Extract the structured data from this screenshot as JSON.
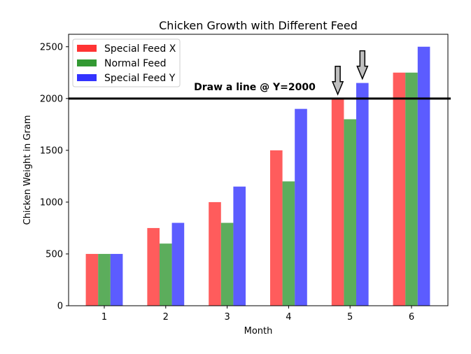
{
  "chart_data": {
    "type": "bar",
    "title": "Chicken Growth with Different Feed",
    "xlabel": "Month",
    "ylabel": "Chicken Weight in Gram",
    "categories": [
      "1",
      "2",
      "3",
      "4",
      "5",
      "6"
    ],
    "ylim": [
      0,
      2620
    ],
    "yticks": [
      0,
      500,
      1000,
      1500,
      2000,
      2500
    ],
    "series": [
      {
        "name": "Special Feed X",
        "color": "#ff3333",
        "values": [
          500,
          750,
          1000,
          1500,
          2000,
          2250
        ]
      },
      {
        "name": "Normal Feed",
        "color": "#339933",
        "values": [
          500,
          600,
          800,
          1200,
          1800,
          2250
        ]
      },
      {
        "name": "Special Feed Y",
        "color": "#3333ff",
        "values": [
          500,
          800,
          1150,
          1900,
          2150,
          2500
        ]
      }
    ],
    "legend_position": "top-left",
    "grid": false,
    "reference_line": {
      "y": 2000,
      "color": "#000000"
    },
    "annotations": [
      {
        "text": "Draw a line @ Y=2000"
      }
    ],
    "arrows": [
      {
        "category": "5",
        "series": "Special Feed X",
        "points_to_value": 2000
      },
      {
        "category": "5",
        "series": "Special Feed Y",
        "points_to_value": 2150
      }
    ]
  }
}
